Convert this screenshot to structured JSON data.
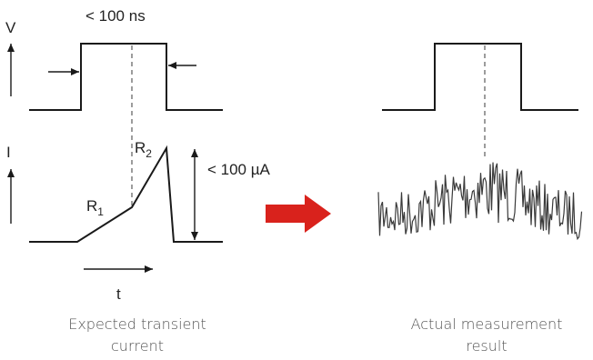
{
  "labels": {
    "v_axis": "V",
    "i_axis": "I",
    "pulse_width": "< 100 ns",
    "r1_main": "R",
    "r1_sub": "1",
    "r2_main": "R",
    "r2_sub": "2",
    "current_amplitude": "< 100 µA",
    "time_axis": "t"
  },
  "captions": {
    "expected_line1": "Expected transient",
    "expected_line2": "current",
    "actual_line1": "Actual measurement",
    "actual_line2": "result"
  },
  "colors": {
    "ink": "#1a1a1a",
    "arrow": "#d9221c",
    "noise": "#3a3a3a"
  },
  "icons": {
    "transition_arrow": "right-arrow-icon"
  }
}
